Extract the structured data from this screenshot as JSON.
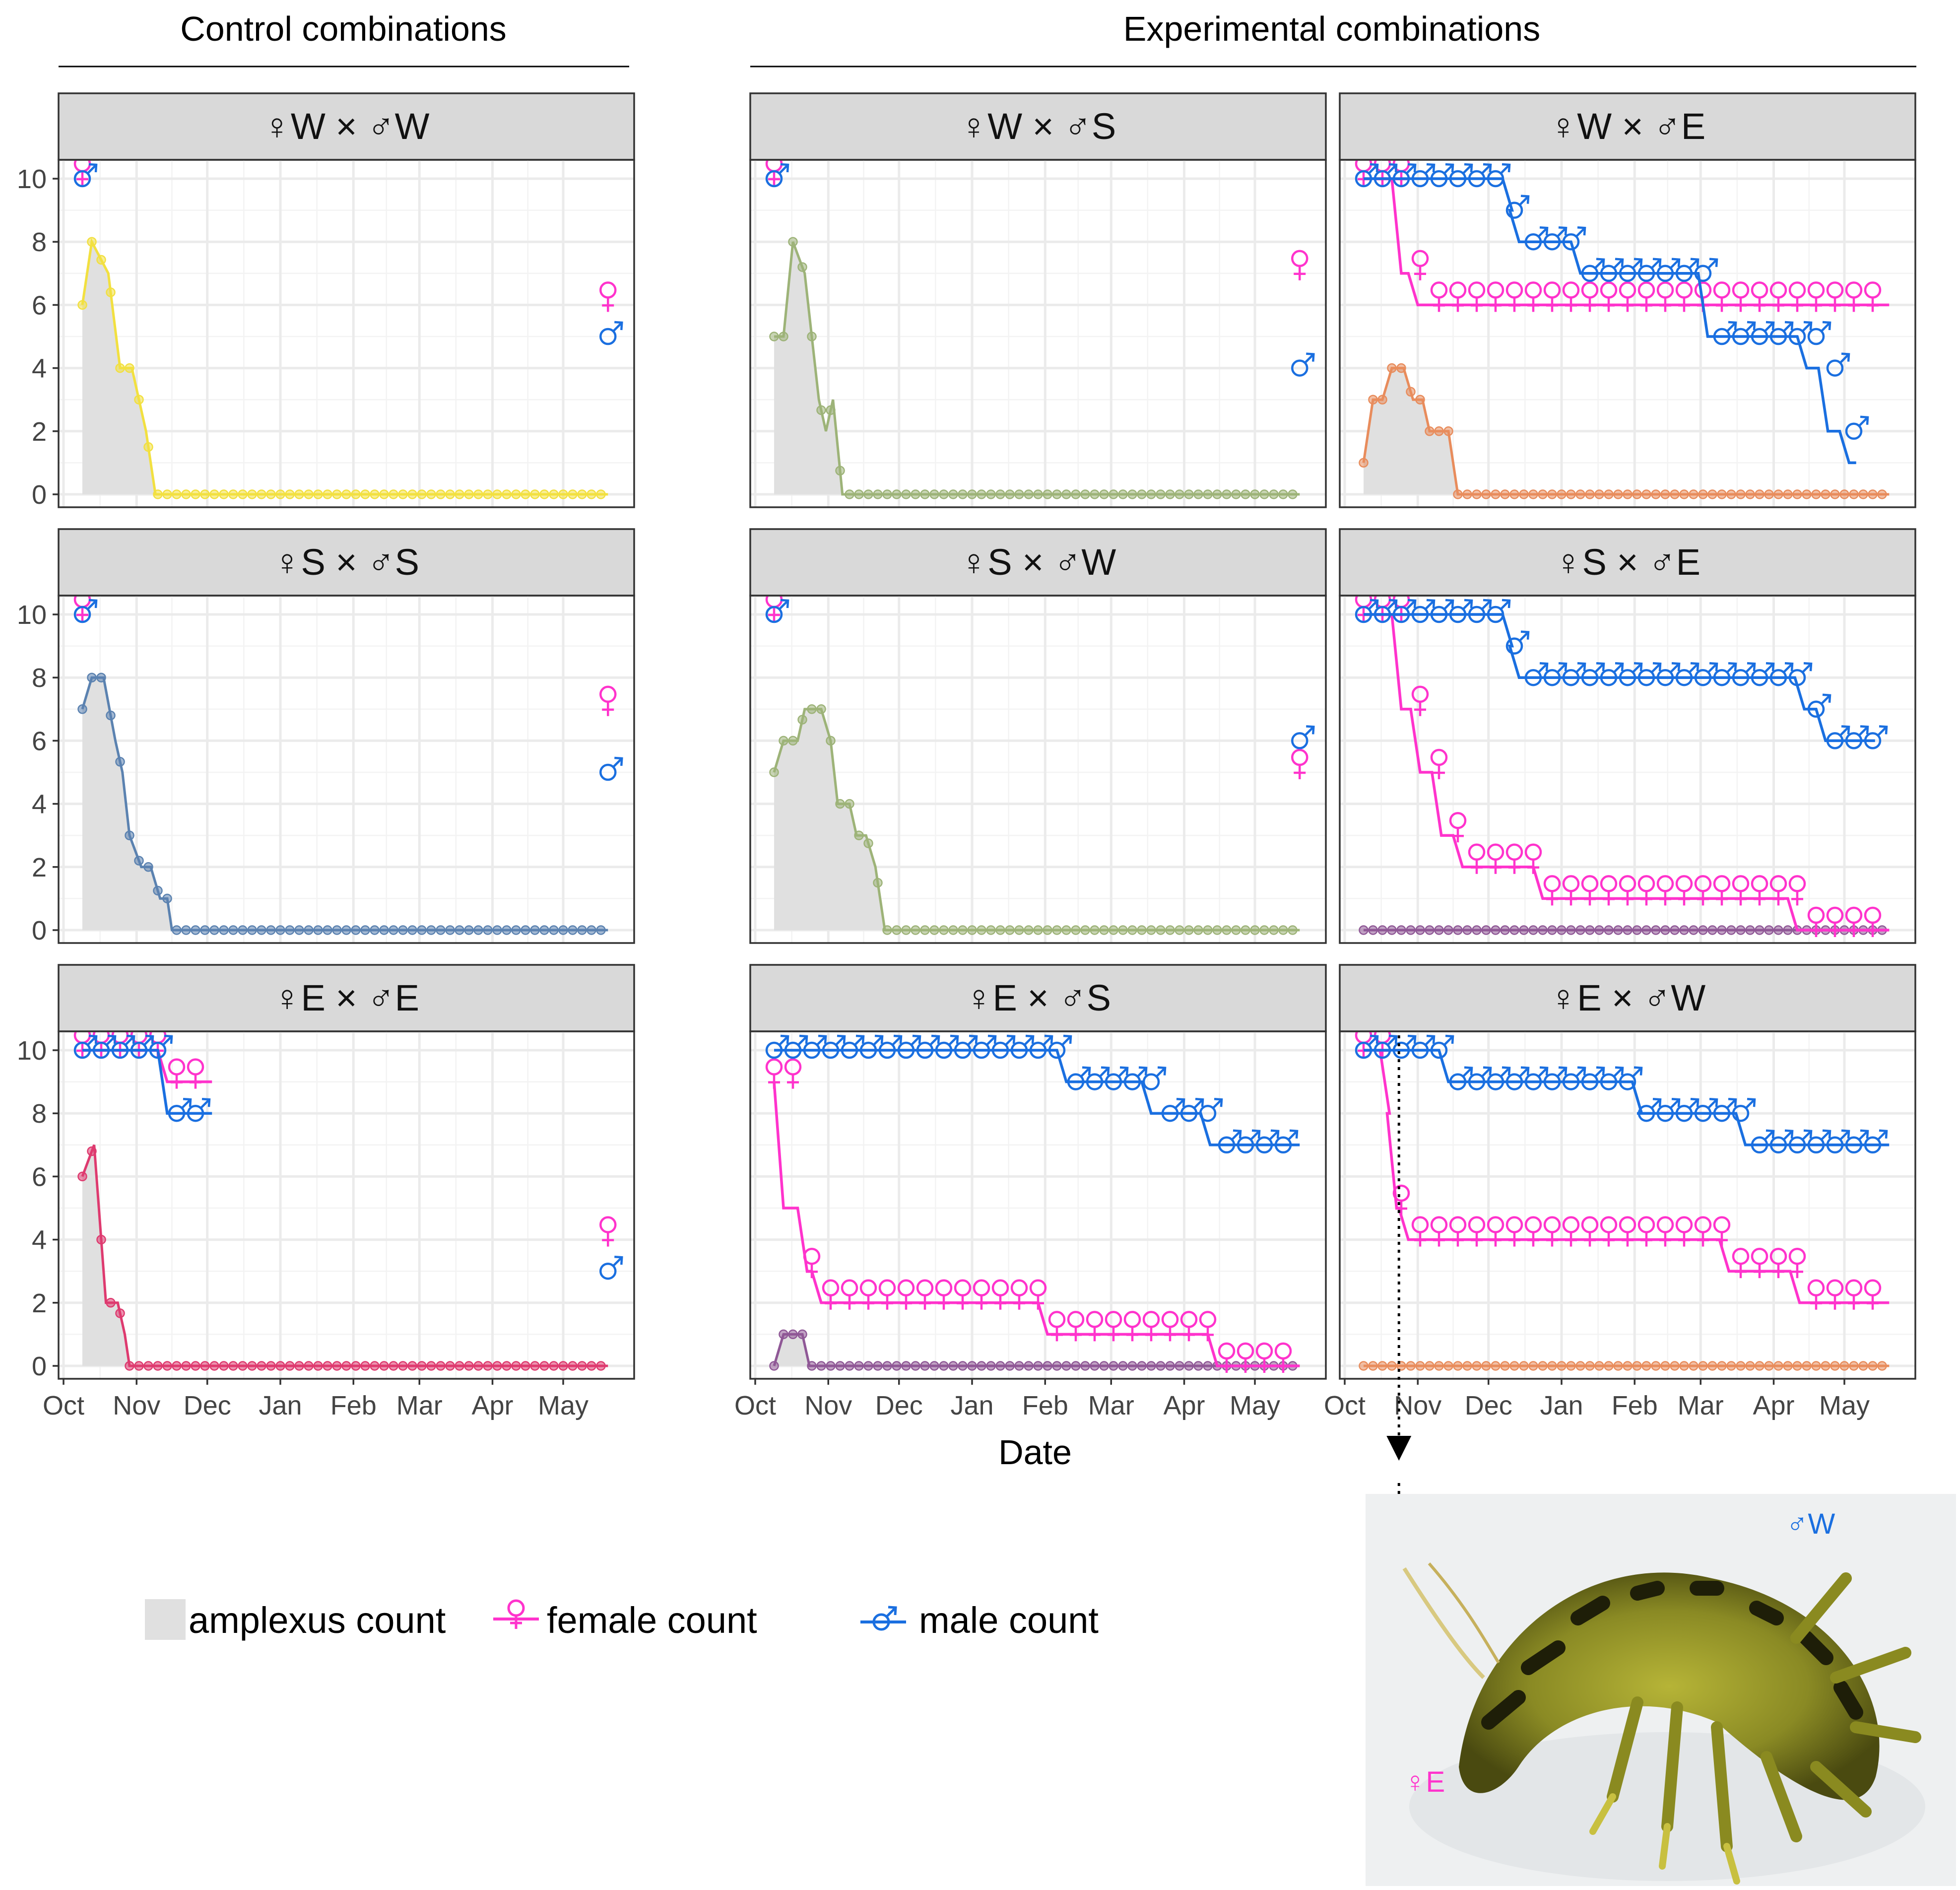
{
  "group_titles": {
    "control": "Control combinations",
    "experimental": "Experimental combinations"
  },
  "x_axis_title": "Date",
  "legend": {
    "amplexus": "amplexus count",
    "female": "female count",
    "male": "male count"
  },
  "colors": {
    "female": "#ff33cc",
    "male": "#1a6fe0",
    "amplexus_fill": "#e0e0e0"
  },
  "photo_labels": {
    "male": "♂W",
    "female": "♀E"
  },
  "chart_data": {
    "type": "line",
    "xlabel": "Date",
    "ylabel": "",
    "ylim": [
      0,
      10
    ],
    "y_ticks": [
      "0",
      "2",
      "4",
      "6",
      "8",
      "10"
    ],
    "x_ticks": [
      "Oct",
      "Nov",
      "Dec",
      "Jan",
      "Feb",
      "Mar",
      "Apr",
      "May"
    ],
    "x_tick_days": [
      0,
      31,
      61,
      92,
      123,
      151,
      182,
      212
    ],
    "x_range_days": [
      0,
      240
    ],
    "panels": [
      {
        "title": "♀W × ♂W",
        "row": 0,
        "col": 0,
        "amplexus_color": "#f2e040",
        "amplexus": [
          [
            8,
            6
          ],
          [
            12,
            8
          ],
          [
            19,
            7
          ],
          [
            24,
            4
          ],
          [
            29,
            4
          ],
          [
            32,
            3
          ],
          [
            35,
            2
          ],
          [
            39,
            0
          ],
          [
            231,
            0
          ]
        ],
        "female": [
          [
            8,
            10
          ],
          [
            231,
            6
          ]
        ],
        "male": [
          [
            8,
            10
          ],
          [
            231,
            5
          ]
        ],
        "start_end_only": true
      },
      {
        "title": "♀S × ♂S",
        "row": 1,
        "col": 0,
        "amplexus_color": "#5b82b0",
        "amplexus": [
          [
            8,
            7
          ],
          [
            12,
            8
          ],
          [
            17,
            8
          ],
          [
            22,
            6
          ],
          [
            25,
            5
          ],
          [
            28,
            3
          ],
          [
            33,
            2
          ],
          [
            37,
            2
          ],
          [
            41,
            1
          ],
          [
            44,
            1
          ],
          [
            46,
            0
          ],
          [
            231,
            0
          ]
        ],
        "female": [
          [
            8,
            10
          ],
          [
            231,
            7
          ]
        ],
        "male": [
          [
            8,
            10
          ],
          [
            231,
            5
          ]
        ],
        "start_end_only": true
      },
      {
        "title": "♀E × ♂E",
        "row": 2,
        "col": 0,
        "amplexus_color": "#de3a6f",
        "amplexus": [
          [
            8,
            6
          ],
          [
            13,
            7
          ],
          [
            18,
            2
          ],
          [
            23,
            2
          ],
          [
            26,
            1
          ],
          [
            28,
            0
          ],
          [
            231,
            0
          ]
        ],
        "female": [
          [
            8,
            10
          ],
          [
            40,
            10
          ],
          [
            48,
            9
          ],
          [
            63,
            9
          ]
        ],
        "male": [
          [
            8,
            10
          ],
          [
            40,
            10
          ],
          [
            48,
            8
          ],
          [
            63,
            8
          ]
        ],
        "endpoints": {
          "female": [
            [
              231,
              4
            ]
          ],
          "male": [
            [
              231,
              3
            ]
          ]
        }
      },
      {
        "title": "♀W × ♂S",
        "row": 0,
        "col": 1,
        "amplexus_color": "#9db378",
        "amplexus": [
          [
            8,
            5
          ],
          [
            12,
            5
          ],
          [
            16,
            8
          ],
          [
            21,
            7
          ],
          [
            24,
            5
          ],
          [
            27,
            3
          ],
          [
            30,
            2
          ],
          [
            33,
            3
          ],
          [
            37,
            0
          ],
          [
            231,
            0
          ]
        ],
        "female": [
          [
            8,
            10
          ],
          [
            231,
            7
          ]
        ],
        "male": [
          [
            8,
            10
          ],
          [
            231,
            4
          ]
        ],
        "start_end_only": true
      },
      {
        "title": "♀S × ♂W",
        "row": 1,
        "col": 1,
        "amplexus_color": "#9db378",
        "amplexus": [
          [
            8,
            5
          ],
          [
            12,
            6
          ],
          [
            18,
            6
          ],
          [
            21,
            7
          ],
          [
            28,
            7
          ],
          [
            32,
            6
          ],
          [
            35,
            4
          ],
          [
            40,
            4
          ],
          [
            43,
            3
          ],
          [
            47,
            3
          ],
          [
            51,
            2
          ],
          [
            55,
            0
          ],
          [
            231,
            0
          ]
        ],
        "female": [
          [
            8,
            10
          ],
          [
            231,
            5
          ]
        ],
        "male": [
          [
            8,
            10
          ],
          [
            231,
            6
          ]
        ],
        "start_end_only": true
      },
      {
        "title": "♀E × ♂S",
        "row": 2,
        "col": 1,
        "amplexus_color": "#8f5896",
        "amplexus": [
          [
            8,
            0
          ],
          [
            12,
            1
          ],
          [
            20,
            1
          ],
          [
            23,
            0
          ],
          [
            231,
            0
          ]
        ],
        "female": [
          [
            8,
            9
          ],
          [
            18,
            5
          ],
          [
            24,
            3
          ],
          [
            29,
            2
          ],
          [
            120,
            2
          ],
          [
            128,
            1
          ],
          [
            192,
            1
          ],
          [
            199,
            0
          ],
          [
            231,
            0
          ]
        ],
        "male": [
          [
            8,
            10
          ],
          [
            128,
            10
          ],
          [
            134,
            9
          ],
          [
            164,
            9
          ],
          [
            170,
            8
          ],
          [
            189,
            8
          ],
          [
            195,
            7
          ],
          [
            231,
            7
          ]
        ]
      },
      {
        "title": "♀W × ♂E",
        "row": 0,
        "col": 2,
        "amplexus_color": "#e88c5c",
        "amplexus": [
          [
            8,
            1
          ],
          [
            12,
            3
          ],
          [
            16,
            3
          ],
          [
            20,
            4
          ],
          [
            25,
            4
          ],
          [
            29,
            3
          ],
          [
            33,
            3
          ],
          [
            36,
            2
          ],
          [
            44,
            2
          ],
          [
            48,
            0
          ],
          [
            231,
            0
          ]
        ],
        "female": [
          [
            8,
            10
          ],
          [
            20,
            10
          ],
          [
            27,
            7
          ],
          [
            35,
            6
          ],
          [
            231,
            6
          ]
        ],
        "male": [
          [
            8,
            10
          ],
          [
            67,
            10
          ],
          [
            70,
            9
          ],
          [
            78,
            8
          ],
          [
            96,
            8
          ],
          [
            104,
            7
          ],
          [
            150,
            7
          ],
          [
            158,
            5
          ],
          [
            192,
            5
          ],
          [
            201,
            4
          ],
          [
            210,
            2
          ],
          [
            217,
            1
          ]
        ]
      },
      {
        "title": "♀S × ♂E",
        "row": 1,
        "col": 2,
        "amplexus_color": "#8f5896",
        "amplexus": [
          [
            8,
            0
          ],
          [
            231,
            0
          ]
        ],
        "female": [
          [
            8,
            10
          ],
          [
            20,
            10
          ],
          [
            28,
            7
          ],
          [
            37,
            5
          ],
          [
            46,
            3
          ],
          [
            52,
            2
          ],
          [
            80,
            2
          ],
          [
            85,
            1
          ],
          [
            188,
            1
          ],
          [
            195,
            0
          ],
          [
            231,
            0
          ]
        ],
        "male": [
          [
            8,
            10
          ],
          [
            67,
            10
          ],
          [
            70,
            9
          ],
          [
            79,
            8
          ],
          [
            191,
            8
          ],
          [
            200,
            7
          ],
          [
            205,
            6
          ],
          [
            225,
            6
          ]
        ]
      },
      {
        "title": "♀E × ♂W",
        "row": 2,
        "col": 2,
        "amplexus_color": "#e88c5c",
        "amplexus": [
          [
            8,
            0
          ],
          [
            231,
            0
          ]
        ],
        "female": [
          [
            8,
            10
          ],
          [
            15,
            10
          ],
          [
            18,
            8
          ],
          [
            23,
            5
          ],
          [
            27,
            4
          ],
          [
            159,
            4
          ],
          [
            167,
            3
          ],
          [
            189,
            3
          ],
          [
            193,
            2
          ],
          [
            231,
            2
          ]
        ],
        "male": [
          [
            8,
            10
          ],
          [
            40,
            10
          ],
          [
            46,
            9
          ],
          [
            122,
            9
          ],
          [
            124,
            8
          ],
          [
            166,
            8
          ],
          [
            174,
            7
          ],
          [
            231,
            7
          ]
        ],
        "marker_day": 23
      }
    ]
  }
}
